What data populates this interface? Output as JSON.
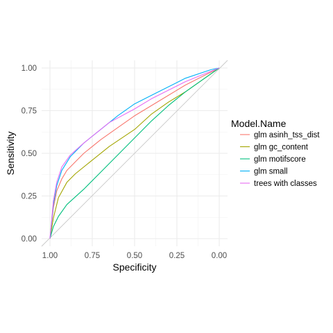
{
  "chart_data": {
    "type": "line",
    "xlabel": "Specificity",
    "ylabel": "Sensitivity",
    "xlim": [
      1.0,
      0.0
    ],
    "ylim": [
      0.0,
      1.0
    ],
    "x_reversed": true,
    "x_ticks": [
      "1.00",
      "0.75",
      "0.50",
      "0.25",
      "0.00"
    ],
    "y_ticks": [
      "0.00",
      "0.25",
      "0.50",
      "0.75",
      "1.00"
    ],
    "grid": true,
    "reference_diagonal": true,
    "legend": {
      "title": "Model.Name",
      "position": "right"
    },
    "series": [
      {
        "name": "glm asinh_tss_dist",
        "color": "#F8766D",
        "points": [
          [
            1.0,
            0.0
          ],
          [
            0.98,
            0.18
          ],
          [
            0.96,
            0.28
          ],
          [
            0.93,
            0.35
          ],
          [
            0.9,
            0.4
          ],
          [
            0.85,
            0.45
          ],
          [
            0.8,
            0.5
          ],
          [
            0.7,
            0.58
          ],
          [
            0.6,
            0.65
          ],
          [
            0.5,
            0.72
          ],
          [
            0.4,
            0.78
          ],
          [
            0.3,
            0.84
          ],
          [
            0.2,
            0.9
          ],
          [
            0.1,
            0.95
          ],
          [
            0.0,
            1.0
          ]
        ]
      },
      {
        "name": "glm gc_content",
        "color": "#A3A500",
        "points": [
          [
            1.0,
            0.0
          ],
          [
            0.98,
            0.12
          ],
          [
            0.95,
            0.24
          ],
          [
            0.9,
            0.33
          ],
          [
            0.85,
            0.38
          ],
          [
            0.75,
            0.46
          ],
          [
            0.65,
            0.54
          ],
          [
            0.5,
            0.64
          ],
          [
            0.4,
            0.73
          ],
          [
            0.3,
            0.8
          ],
          [
            0.2,
            0.86
          ],
          [
            0.1,
            0.93
          ],
          [
            0.0,
            1.0
          ]
        ]
      },
      {
        "name": "glm motifscore",
        "color": "#00BF7D",
        "points": [
          [
            1.0,
            0.0
          ],
          [
            0.98,
            0.07
          ],
          [
            0.95,
            0.13
          ],
          [
            0.9,
            0.2
          ],
          [
            0.8,
            0.29
          ],
          [
            0.7,
            0.39
          ],
          [
            0.6,
            0.49
          ],
          [
            0.5,
            0.59
          ],
          [
            0.4,
            0.69
          ],
          [
            0.3,
            0.78
          ],
          [
            0.2,
            0.86
          ],
          [
            0.1,
            0.93
          ],
          [
            0.0,
            1.0
          ]
        ]
      },
      {
        "name": "glm small",
        "color": "#00B0F6",
        "points": [
          [
            1.0,
            0.0
          ],
          [
            0.98,
            0.2
          ],
          [
            0.96,
            0.31
          ],
          [
            0.93,
            0.4
          ],
          [
            0.88,
            0.48
          ],
          [
            0.8,
            0.56
          ],
          [
            0.7,
            0.64
          ],
          [
            0.6,
            0.72
          ],
          [
            0.5,
            0.79
          ],
          [
            0.4,
            0.84
          ],
          [
            0.2,
            0.94
          ],
          [
            0.05,
            0.99
          ],
          [
            0.0,
            1.0
          ]
        ]
      },
      {
        "name": "trees with classes",
        "color": "#E76BF3",
        "points": [
          [
            1.0,
            0.0
          ],
          [
            0.98,
            0.22
          ],
          [
            0.96,
            0.33
          ],
          [
            0.93,
            0.42
          ],
          [
            0.88,
            0.49
          ],
          [
            0.8,
            0.56
          ],
          [
            0.65,
            0.68
          ],
          [
            0.5,
            0.76
          ],
          [
            0.4,
            0.82
          ],
          [
            0.3,
            0.87
          ],
          [
            0.2,
            0.92
          ],
          [
            0.1,
            0.96
          ],
          [
            0.0,
            1.0
          ]
        ]
      }
    ]
  }
}
